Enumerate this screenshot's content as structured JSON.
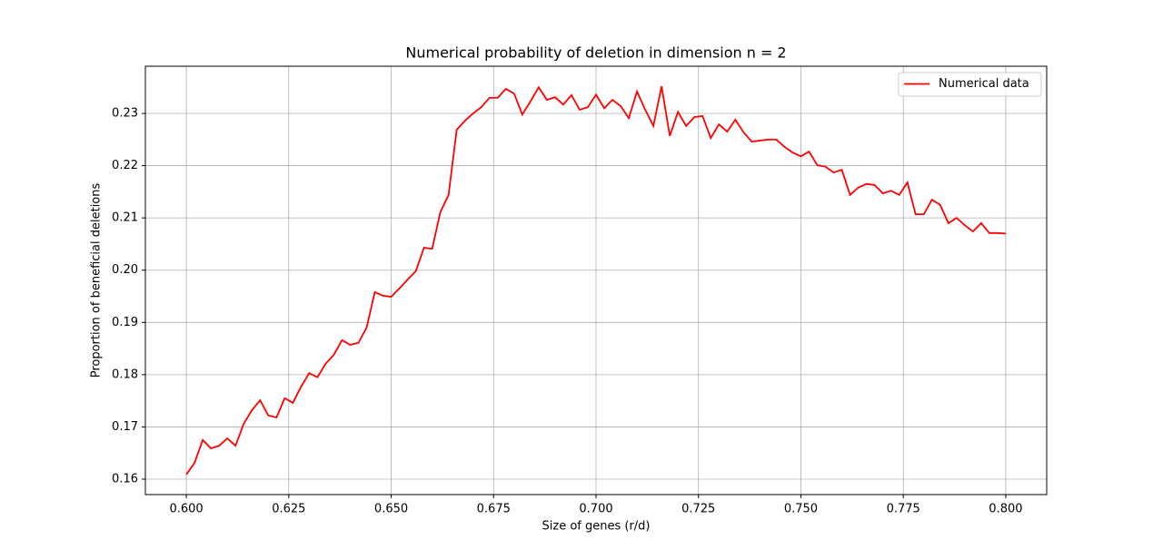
{
  "chart_data": {
    "type": "line",
    "title": "Numerical probability of deletion in dimension n = 2",
    "x_label": "Size of genes (r/d)",
    "y_label": "Proportion of beneficial deletions",
    "x": [
      0.6,
      0.602,
      0.604,
      0.606,
      0.608,
      0.61,
      0.612,
      0.614,
      0.616,
      0.618,
      0.62,
      0.622,
      0.624,
      0.626,
      0.628,
      0.63,
      0.632,
      0.634,
      0.636,
      0.638,
      0.64,
      0.642,
      0.644,
      0.646,
      0.648,
      0.65,
      0.652,
      0.654,
      0.656,
      0.658,
      0.66,
      0.662,
      0.664,
      0.666,
      0.668,
      0.67,
      0.672,
      0.674,
      0.676,
      0.678,
      0.68,
      0.682,
      0.684,
      0.686,
      0.688,
      0.69,
      0.692,
      0.694,
      0.696,
      0.698,
      0.7,
      0.702,
      0.704,
      0.706,
      0.708,
      0.71,
      0.712,
      0.714,
      0.716,
      0.718,
      0.72,
      0.722,
      0.724,
      0.726,
      0.728,
      0.73,
      0.732,
      0.734,
      0.736,
      0.738,
      0.74,
      0.742,
      0.744,
      0.746,
      0.748,
      0.75,
      0.752,
      0.754,
      0.756,
      0.758,
      0.76,
      0.762,
      0.764,
      0.766,
      0.768,
      0.77,
      0.772,
      0.774,
      0.776,
      0.778,
      0.78,
      0.782,
      0.784,
      0.786,
      0.788,
      0.79,
      0.792,
      0.794,
      0.796,
      0.798,
      0.8
    ],
    "series": [
      {
        "name": "Numerical data",
        "color": "#ff0000",
        "values": [
          0.1609,
          0.1631,
          0.1675,
          0.1659,
          0.1664,
          0.1678,
          0.1664,
          0.1706,
          0.1732,
          0.1751,
          0.1722,
          0.1718,
          0.1755,
          0.1746,
          0.1777,
          0.1803,
          0.1795,
          0.1821,
          0.1838,
          0.1866,
          0.1857,
          0.1861,
          0.189,
          0.1958,
          0.1951,
          0.1949,
          0.1965,
          0.1982,
          0.1998,
          0.2043,
          0.2041,
          0.2111,
          0.2144,
          0.2269,
          0.2286,
          0.23,
          0.2312,
          0.233,
          0.233,
          0.2347,
          0.2338,
          0.2298,
          0.2323,
          0.235,
          0.2326,
          0.2331,
          0.2317,
          0.2335,
          0.2307,
          0.2312,
          0.2336,
          0.231,
          0.2326,
          0.2314,
          0.2291,
          0.2342,
          0.2307,
          0.2276,
          0.2352,
          0.2257,
          0.2303,
          0.2276,
          0.2293,
          0.2295,
          0.2253,
          0.2279,
          0.2265,
          0.2288,
          0.2264,
          0.2246,
          0.2248,
          0.225,
          0.225,
          0.2236,
          0.2225,
          0.2218,
          0.2227,
          0.2201,
          0.2198,
          0.2187,
          0.2192,
          0.2144,
          0.2158,
          0.2165,
          0.2163,
          0.2147,
          0.2152,
          0.2144,
          0.2168,
          0.2107,
          0.2107,
          0.2135,
          0.2125,
          0.209,
          0.21,
          0.2086,
          0.2074,
          0.209,
          0.2071,
          0.2071,
          0.207
        ]
      }
    ],
    "xlim": [
      0.59,
      0.81
    ],
    "ylim": [
      0.15705,
      0.23903
    ],
    "xticks": [
      {
        "value": 0.6,
        "label": "0.600"
      },
      {
        "value": 0.625,
        "label": "0.625"
      },
      {
        "value": 0.65,
        "label": "0.650"
      },
      {
        "value": 0.675,
        "label": "0.675"
      },
      {
        "value": 0.7,
        "label": "0.700"
      },
      {
        "value": 0.725,
        "label": "0.725"
      },
      {
        "value": 0.75,
        "label": "0.750"
      },
      {
        "value": 0.775,
        "label": "0.775"
      },
      {
        "value": 0.8,
        "label": "0.800"
      }
    ],
    "yticks": [
      0.16,
      0.17,
      0.18,
      0.19,
      {
        "value": 0.2,
        "label": "0.20"
      },
      0.21,
      0.22,
      0.23
    ],
    "grid": true,
    "legend": "upper right"
  }
}
